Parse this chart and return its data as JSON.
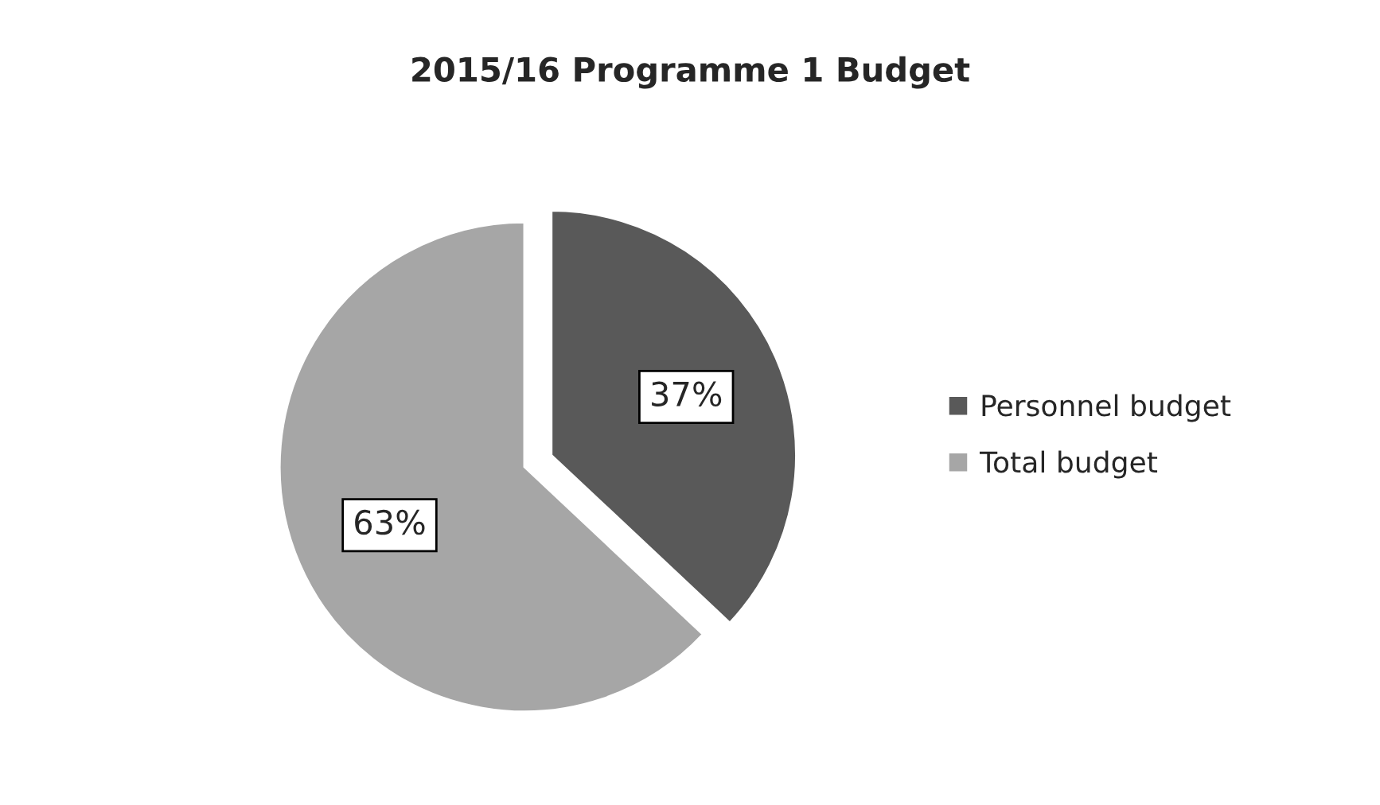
{
  "chart_data": {
    "type": "pie",
    "title": "2015/16 Programme 1 Budget",
    "categories": [
      "Personnel budget",
      "Total budget"
    ],
    "values": [
      37,
      63
    ],
    "colors": [
      "#595959",
      "#a6a6a6"
    ],
    "value_labels": [
      "37%",
      "63%"
    ],
    "legend": "right"
  }
}
